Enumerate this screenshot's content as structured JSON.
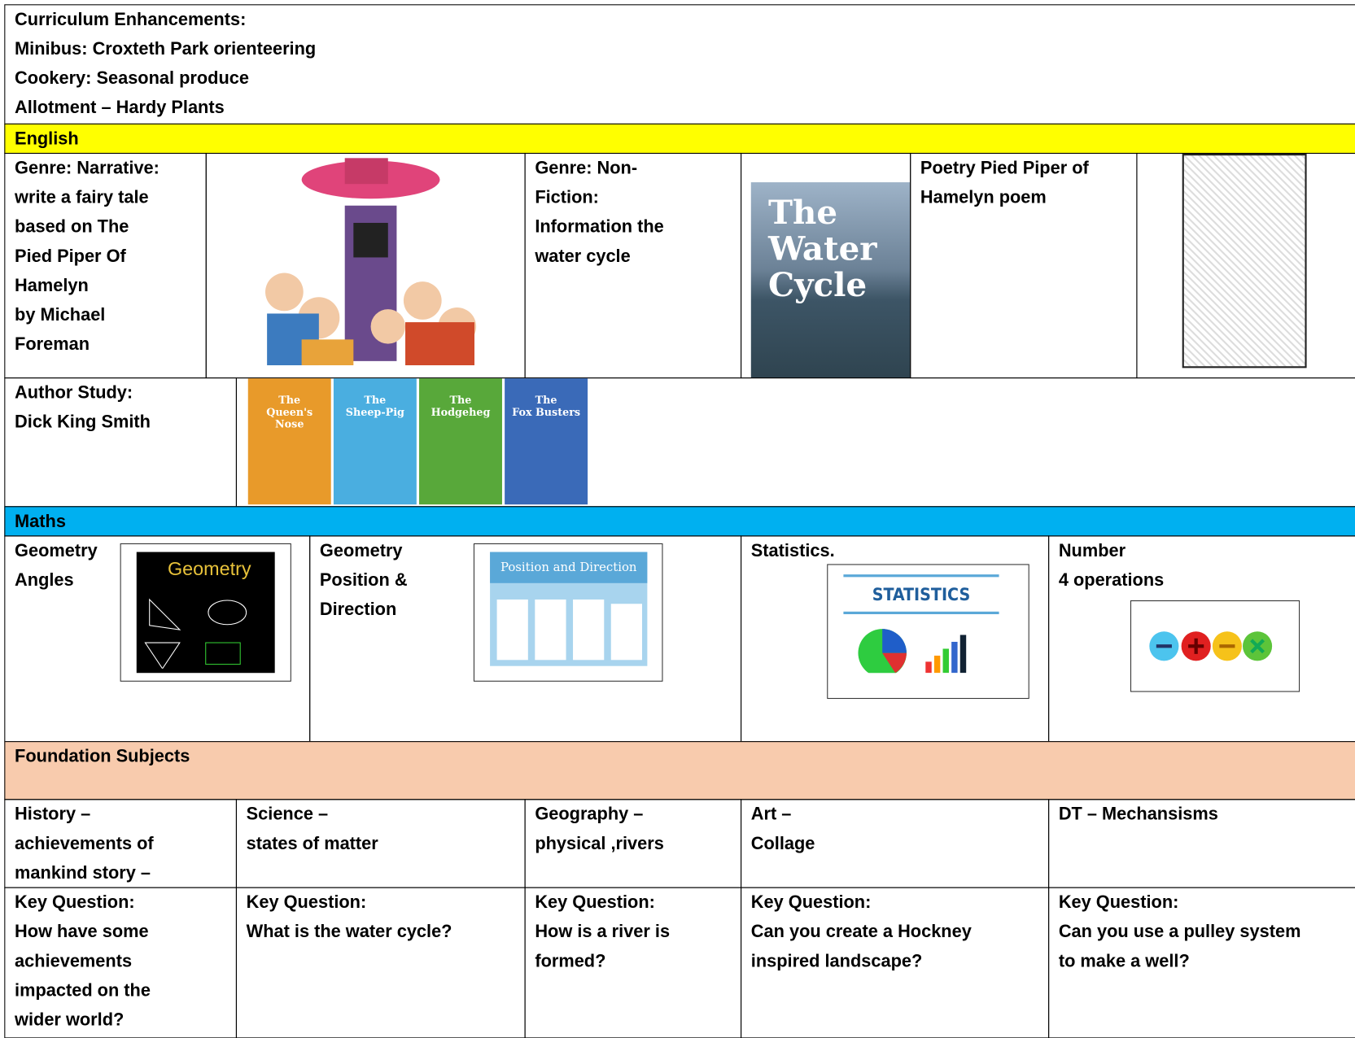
{
  "enhancements": {
    "lines": [
      "Curriculum Enhancements:",
      "Minibus: Croxteth Park orienteering",
      "Cookery: Seasonal produce",
      "Allotment – Hardy Plants"
    ]
  },
  "english": {
    "heading": "English",
    "genres": [
      {
        "lines": [
          "Genre: Narrative:",
          "write a fairy tale",
          "based on The",
          "Pied Piper Of",
          "Hamelyn",
          "by Michael",
          "Foreman"
        ]
      },
      {
        "lines": [
          "Genre: Non-",
          "Fiction:",
          "Information the",
          "water cycle"
        ],
        "cover": [
          "The",
          "Water",
          "Cycle"
        ]
      },
      {
        "lines": [
          "Poetry Pied Piper of",
          "Hamelyn poem"
        ]
      }
    ],
    "author_study": {
      "lines": [
        "Author Study:",
        "Dick King Smith"
      ],
      "books": [
        [
          "The",
          "Queen's",
          "Nose"
        ],
        [
          "The",
          "Sheep-Pig"
        ],
        [
          "The",
          "Hodgeheg"
        ],
        [
          "The",
          "Fox Busters"
        ]
      ]
    }
  },
  "maths": {
    "heading": "Maths",
    "topics": [
      {
        "lines": [
          "Geometry",
          "Angles"
        ],
        "image_title": "Geometry"
      },
      {
        "lines": [
          "Geometry",
          "Position &",
          "Direction"
        ],
        "image_title": "Position and Direction"
      },
      {
        "lines": [
          "Statistics."
        ],
        "image_title": "STATISTICS"
      },
      {
        "lines": [
          "Number",
          "4 operations"
        ]
      }
    ]
  },
  "foundation": {
    "heading": "Foundation Subjects",
    "subjects": [
      {
        "lines": [
          "History –",
          "achievements of",
          "mankind story –"
        ],
        "key_question": [
          "Key Question:",
          "How have some",
          "achievements",
          "impacted on the",
          "wider world?"
        ]
      },
      {
        "lines": [
          "Science –",
          "states of matter"
        ],
        "key_question": [
          "Key Question:",
          "What is the water cycle?"
        ]
      },
      {
        "lines": [
          "Geography –",
          "physical ,rivers"
        ],
        "key_question": [
          "Key Question:",
          "How is a river is",
          "formed?"
        ]
      },
      {
        "lines": [
          "Art –",
          "Collage"
        ],
        "key_question": [
          "Key Question:",
          "Can you create a Hockney",
          "inspired landscape?"
        ]
      },
      {
        "lines": [
          "DT – Mechansisms"
        ],
        "key_question": [
          "Key Question:",
          "Can you use a pulley system",
          "to make a well?"
        ]
      }
    ]
  }
}
